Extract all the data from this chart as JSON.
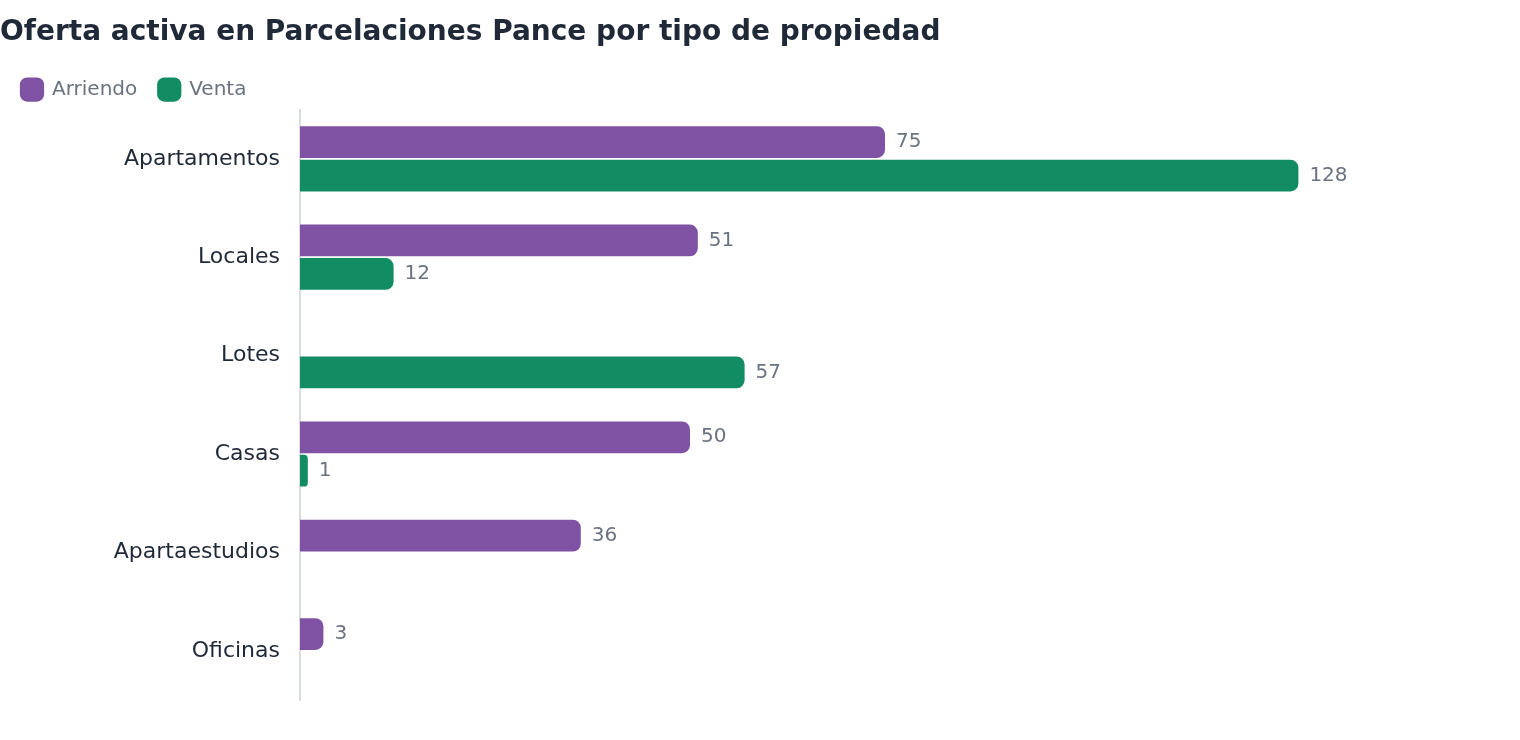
{
  "chart_data": {
    "type": "bar",
    "orientation": "horizontal",
    "title": "Oferta activa en Parcelaciones Pance por tipo de propiedad",
    "categories": [
      "Apartamentos",
      "Locales",
      "Lotes",
      "Casas",
      "Apartaestudios",
      "Oficinas"
    ],
    "series": [
      {
        "name": "Arriendo",
        "color": "#7f52a3",
        "values": [
          75,
          51,
          null,
          50,
          36,
          3
        ]
      },
      {
        "name": "Venta",
        "color": "#128c62",
        "values": [
          128,
          12,
          57,
          1,
          null,
          null
        ]
      }
    ],
    "data_labels": true,
    "legend": "top left",
    "grid": false,
    "tick_labels": "y"
  }
}
